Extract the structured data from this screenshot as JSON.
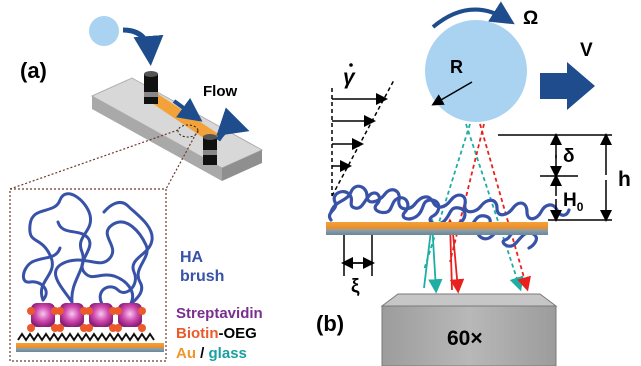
{
  "panel_a": {
    "label": "(a)",
    "flow_label": "Flow",
    "brush_line1": "HA",
    "brush_line2": "brush",
    "legend_streptavidin": "Streptavidin",
    "legend_biotin": "Biotin",
    "legend_oeg": "-OEG",
    "legend_au": "Au",
    "legend_sep": " / ",
    "legend_glass": "glass"
  },
  "panel_b": {
    "label": "(b)",
    "shear_rate_symbol": "γ",
    "omega_symbol": "Ω",
    "velocity_symbol": "V",
    "radius_symbol": "R",
    "delta_symbol": "δ",
    "h_symbol": "h",
    "h0_symbol": "H",
    "h0_subscript": "0",
    "xi_symbol": "ξ",
    "objective_label": "60×"
  },
  "colors": {
    "sphere": "#a9d3f1",
    "brush_blue": "#3852a8",
    "arrow_navy": "#1e4c8c",
    "streptavidin_purple": "#7a2e90",
    "biotin_orange": "#ea5a2b",
    "au_orange": "#f0962a",
    "glass_teal": "#1aa0a0",
    "ray_red": "#e8211f",
    "ray_teal": "#1eaea4",
    "objective_grey": "#b3b3b3"
  }
}
